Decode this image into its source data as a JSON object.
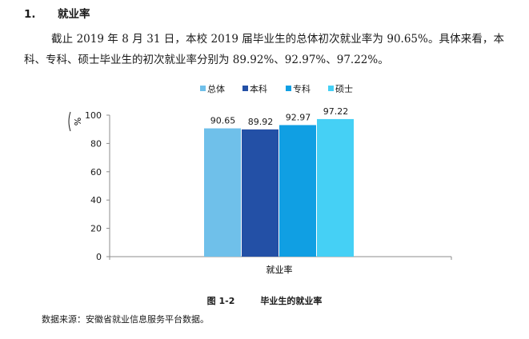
{
  "section": {
    "number": "1.",
    "title": "就业率"
  },
  "paragraph": "截止 2019 年 8 月 31 日，本校 2019 届毕业生的总体初次就业率为 90.65%。具体来看，本科、专科、硕士毕业生的初次就业率分别为 89.92%、92.97%、97.22%。",
  "colors": {
    "总体": "#6fc0ea",
    "本科": "#2350a6",
    "专科": "#109fe3",
    "硕士": "#45d0f5",
    "axis": "#8c8c8c",
    "text": "#1a1a1a"
  },
  "chart_data": {
    "type": "bar",
    "categories": [
      "就业率"
    ],
    "series": [
      {
        "name": "总体",
        "values": [
          90.65
        ]
      },
      {
        "name": "本科",
        "values": [
          89.92
        ]
      },
      {
        "name": "专科",
        "values": [
          92.97
        ]
      },
      {
        "name": "硕士",
        "values": [
          97.22
        ]
      }
    ],
    "data_labels": [
      "90.65",
      "89.92",
      "92.97",
      "97.22"
    ],
    "title": "",
    "xlabel": "就业率",
    "ylabel": "%",
    "ylim": [
      0,
      100
    ],
    "yticks": [
      0,
      20,
      40,
      60,
      80,
      100
    ],
    "grid": false,
    "legend_position": "top-center"
  },
  "caption": {
    "figure_number": "图 1-2",
    "title": "毕业生的就业率"
  },
  "source_note": "数据来源：安徽省就业信息服务平台数据。"
}
